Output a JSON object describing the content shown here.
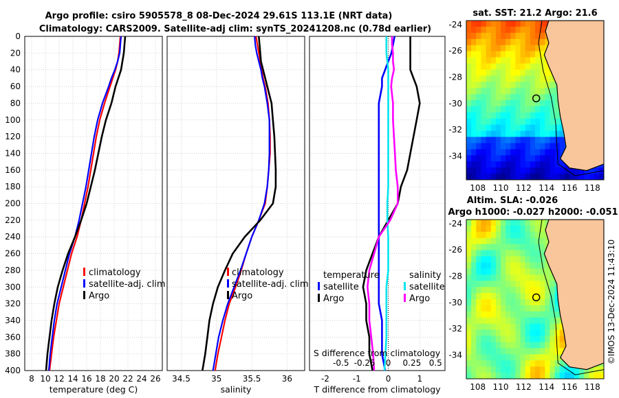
{
  "titles": {
    "line1": "Argo profile: csiro 5905578_8 08-Dec-2024 29.61S 113.1E (NRT data)",
    "line2": "Climatology: CARS2009. Satellite-adj clim: synTS_20241208.nc (0.78d earlier)",
    "sst_map": "sat. SST: 21.2 Argo: 21.6",
    "sla_map1": "Altim. SLA: -0.026",
    "sla_map2": "Argo h1000: -0.027 h2000: -0.051",
    "credit": "©IMOS 13-Dec-2024 11:43:10"
  },
  "colors": {
    "climatology": "#ff0000",
    "satellite": "#0000ff",
    "argo": "#000000",
    "sal_satellite": "#00e5ee",
    "sal_argo": "#ff00ff",
    "land": "#f9c59b"
  },
  "chart_data": [
    {
      "type": "line",
      "name": "temperature",
      "xlabel": "temperature (deg C)",
      "ylabel": "",
      "xlim": [
        7,
        27
      ],
      "ylim": [
        400,
        0
      ],
      "xticks": [
        "8",
        "10",
        "12",
        "14",
        "16",
        "18",
        "20",
        "22",
        "24",
        "26"
      ],
      "yticks": [
        "0",
        "20",
        "40",
        "60",
        "80",
        "100",
        "120",
        "140",
        "160",
        "180",
        "200",
        "220",
        "240",
        "260",
        "280",
        "300",
        "320",
        "340",
        "360",
        "380",
        "400"
      ],
      "legend": [
        "climatology",
        "satellite-adj. clim",
        "Argo"
      ],
      "depth": [
        0,
        10,
        20,
        30,
        40,
        50,
        60,
        80,
        100,
        120,
        140,
        160,
        180,
        200,
        220,
        240,
        260,
        280,
        300,
        320,
        340,
        360,
        380,
        400
      ],
      "series": [
        {
          "name": "climatology",
          "values": [
            20.9,
            20.8,
            20.7,
            20.5,
            20.2,
            19.8,
            19.4,
            18.6,
            17.9,
            17.4,
            17.0,
            16.6,
            16.2,
            15.7,
            15.2,
            14.6,
            13.8,
            13.2,
            12.6,
            12.0,
            11.6,
            11.2,
            10.9,
            10.6
          ]
        },
        {
          "name": "satellite-adj. clim",
          "values": [
            21.0,
            20.9,
            20.8,
            20.5,
            20.1,
            19.6,
            19.2,
            18.3,
            17.6,
            17.1,
            16.7,
            16.3,
            15.9,
            15.4,
            14.9,
            14.3,
            13.5,
            12.9,
            12.3,
            11.7,
            11.3,
            11.0,
            10.7,
            10.5
          ]
        },
        {
          "name": "Argo",
          "values": [
            21.6,
            21.5,
            21.4,
            21.2,
            21.0,
            20.6,
            20.2,
            19.6,
            18.8,
            18.2,
            17.7,
            17.2,
            16.6,
            16.0,
            15.2,
            14.3,
            13.3,
            12.5,
            11.8,
            11.3,
            10.9,
            10.6,
            10.3,
            10.1
          ]
        }
      ]
    },
    {
      "type": "line",
      "name": "salinity",
      "xlabel": "salinity",
      "xlim": [
        34.3,
        36.25
      ],
      "ylim": [
        400,
        0
      ],
      "xticks": [
        "34.5",
        "35",
        "35.5",
        "36"
      ],
      "legend": [
        "climatology",
        "satellite-adj. clim",
        "Argo"
      ],
      "depth": [
        0,
        10,
        20,
        30,
        40,
        50,
        60,
        80,
        100,
        120,
        140,
        160,
        180,
        200,
        220,
        240,
        260,
        280,
        300,
        320,
        340,
        360,
        380,
        400
      ],
      "series": [
        {
          "name": "climatology",
          "values": [
            35.56,
            35.58,
            35.6,
            35.62,
            35.64,
            35.66,
            35.69,
            35.73,
            35.75,
            35.76,
            35.76,
            35.74,
            35.72,
            35.69,
            35.6,
            35.5,
            35.42,
            35.35,
            35.27,
            35.18,
            35.12,
            35.07,
            35.02,
            34.98
          ]
        },
        {
          "name": "satellite-adj. clim",
          "values": [
            35.54,
            35.55,
            35.57,
            35.6,
            35.63,
            35.65,
            35.68,
            35.72,
            35.75,
            35.75,
            35.75,
            35.74,
            35.72,
            35.68,
            35.6,
            35.5,
            35.42,
            35.34,
            35.25,
            35.16,
            35.09,
            35.03,
            34.99,
            34.95
          ]
        },
        {
          "name": "Argo",
          "values": [
            35.6,
            35.61,
            35.62,
            35.63,
            35.66,
            35.69,
            35.72,
            35.78,
            35.8,
            35.82,
            35.83,
            35.84,
            35.84,
            35.8,
            35.62,
            35.4,
            35.23,
            35.12,
            35.02,
            34.95,
            34.9,
            34.87,
            34.84,
            34.8
          ]
        }
      ]
    },
    {
      "type": "line",
      "name": "difference",
      "xlabel": "T difference from climatology",
      "top_label": "S difference from climatology",
      "xlim": [
        -2.5,
        1.8
      ],
      "ylim": [
        400,
        0
      ],
      "xticks": [
        "-2",
        "-1",
        "0",
        "1"
      ],
      "top_ticks": [
        "-0.5",
        "-0.25",
        "0",
        "0.25",
        "0.5"
      ],
      "legend_titles": [
        "temperature",
        "salinity"
      ],
      "legend_left": [
        "satellite",
        "Argo"
      ],
      "legend_right": [
        "satellite",
        "Argo"
      ],
      "depth": [
        0,
        10,
        20,
        30,
        40,
        50,
        60,
        80,
        100,
        120,
        140,
        160,
        180,
        200,
        220,
        240,
        260,
        280,
        300,
        320,
        340,
        360,
        380,
        400
      ],
      "series": [
        {
          "name": "temperature satellite",
          "values": [
            0.2,
            0.15,
            0.1,
            0.0,
            -0.1,
            -0.2,
            -0.2,
            -0.3,
            -0.3,
            -0.3,
            -0.3,
            -0.3,
            -0.3,
            -0.3,
            -0.3,
            -0.3,
            -0.3,
            -0.3,
            -0.3,
            -0.3,
            -0.2,
            -0.2,
            -0.2,
            -0.1
          ]
        },
        {
          "name": "temperature Argo",
          "values": [
            0.7,
            0.7,
            0.7,
            0.7,
            0.7,
            0.8,
            0.9,
            1.0,
            0.9,
            0.8,
            0.7,
            0.6,
            0.4,
            0.3,
            0.0,
            -0.3,
            -0.5,
            -0.7,
            -0.8,
            -0.7,
            -0.7,
            -0.6,
            -0.6,
            -0.5
          ]
        },
        {
          "name": "salinity satellite",
          "values": [
            -0.02,
            -0.02,
            -0.02,
            -0.01,
            0.0,
            0.0,
            0.0,
            0.0,
            0.0,
            0.0,
            0.0,
            0.0,
            0.0,
            -0.01,
            -0.01,
            0.0,
            0.0,
            0.0,
            -0.02,
            -0.02,
            -0.02,
            -0.02,
            -0.03,
            -0.04
          ]
        },
        {
          "name": "salinity Argo",
          "values": [
            0.04,
            0.04,
            0.05,
            0.05,
            0.06,
            0.04,
            0.03,
            0.05,
            0.05,
            0.06,
            0.07,
            0.08,
            0.1,
            0.1,
            0.02,
            -0.1,
            -0.15,
            -0.2,
            -0.22,
            -0.2,
            -0.2,
            -0.18,
            -0.16,
            -0.15
          ]
        }
      ]
    },
    {
      "type": "heatmap",
      "name": "sat SST map",
      "xticks": [
        "108",
        "110",
        "112",
        "114",
        "116",
        "118"
      ],
      "yticks": [
        "-24",
        "-26",
        "-28",
        "-30",
        "-32",
        "-34"
      ],
      "xlim": [
        107,
        119
      ],
      "ylim": [
        -35.8,
        -23.7
      ],
      "argo_marker": {
        "lon": 113.1,
        "lat": -29.61
      }
    },
    {
      "type": "heatmap",
      "name": "altimetry SLA map",
      "xticks": [
        "108",
        "110",
        "112",
        "114",
        "116",
        "118"
      ],
      "yticks": [
        "-24",
        "-26",
        "-28",
        "-30",
        "-32",
        "-34"
      ],
      "xlim": [
        107,
        119
      ],
      "ylim": [
        -35.8,
        -23.7
      ],
      "argo_marker": {
        "lon": 113.1,
        "lat": -29.61
      }
    }
  ]
}
